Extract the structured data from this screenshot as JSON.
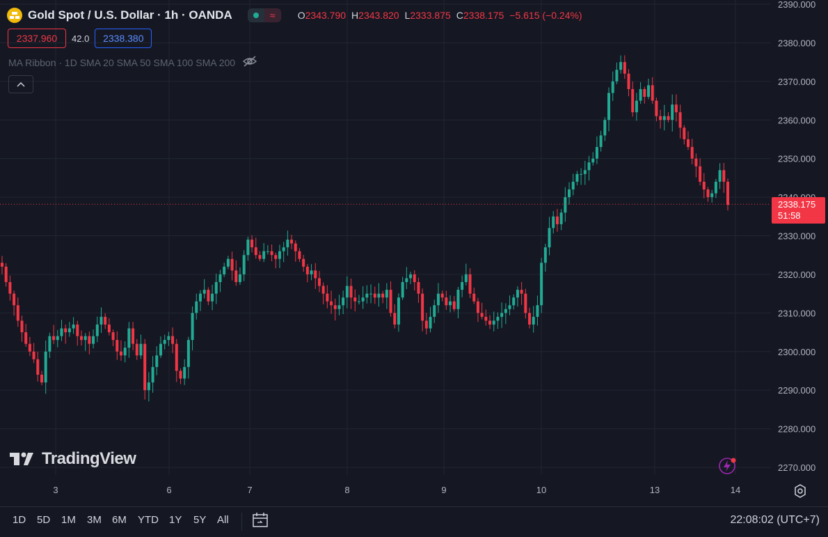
{
  "header": {
    "title": "Gold Spot / U.S. Dollar · 1h · OANDA",
    "ohlc": [
      {
        "key": "O",
        "value": "2343.790"
      },
      {
        "key": "H",
        "value": "2343.820"
      },
      {
        "key": "L",
        "value": "2333.875"
      },
      {
        "key": "C",
        "value": "2338.175"
      }
    ],
    "change": "−5.615 (−0.24%)"
  },
  "trade": {
    "sell": "2337.960",
    "spread": "42.0",
    "buy": "2338.380"
  },
  "indicator": {
    "ma_label": "MA Ribbon · 1D SMA 20 SMA 50 SMA 100 SMA 200"
  },
  "branding": {
    "logo_text": "TradingView"
  },
  "last_price": {
    "price": "2338.175",
    "countdown": "51:58"
  },
  "bottom_bar": {
    "ranges": [
      "1D",
      "5D",
      "1M",
      "3M",
      "6M",
      "YTD",
      "1Y",
      "5Y",
      "All"
    ],
    "clock": "22:08:02 (UTC+7)"
  },
  "colors": {
    "up": "#22ab94",
    "down": "#f23645",
    "background": "#151823",
    "grid": "#222632"
  },
  "chart_data": {
    "type": "candlestick",
    "y_ticks": [
      "2390.000",
      "2380.000",
      "2370.000",
      "2360.000",
      "2350.000",
      "2340.000",
      "2330.000",
      "2320.000",
      "2310.000",
      "2300.000",
      "2290.000",
      "2280.000",
      "2270.000"
    ],
    "x_ticks": [
      "3",
      "6",
      "7",
      "8",
      "9",
      "10",
      "13",
      "14"
    ],
    "close_series": [
      2322,
      2318,
      2315,
      2312,
      2308,
      2305,
      2302,
      2300,
      2298,
      2294,
      2292,
      2300,
      2304,
      2303,
      2304,
      2306,
      2305,
      2306,
      2307,
      2304,
      2303,
      2304,
      2302,
      2304,
      2307,
      2309,
      2307,
      2305,
      2303,
      2300,
      2299,
      2301,
      2306,
      2302,
      2299,
      2302,
      2290,
      2292,
      2296,
      2299,
      2302,
      2303,
      2304,
      2302,
      2295,
      2293,
      2296,
      2303,
      2310,
      2313,
      2315,
      2316,
      2313,
      2315,
      2318,
      2320,
      2322,
      2324,
      2321,
      2318,
      2320,
      2325,
      2329,
      2327,
      2325,
      2324,
      2326,
      2326,
      2325,
      2324,
      2326,
      2327,
      2329,
      2328,
      2326,
      2324,
      2322,
      2320,
      2321,
      2319,
      2317,
      2315,
      2313,
      2312,
      2311,
      2312,
      2314,
      2317,
      2314,
      2313,
      2313,
      2314,
      2315,
      2315,
      2314,
      2315,
      2314,
      2316,
      2310,
      2307,
      2314,
      2318,
      2319,
      2320,
      2318,
      2315,
      2308,
      2306,
      2309,
      2312,
      2315,
      2314,
      2312,
      2313,
      2311,
      2316,
      2318,
      2320,
      2315,
      2313,
      2310,
      2309,
      2308,
      2307,
      2308,
      2309,
      2310,
      2311,
      2312,
      2314,
      2316,
      2315,
      2310,
      2307,
      2309,
      2312,
      2323,
      2327,
      2332,
      2335,
      2333,
      2336,
      2340,
      2342,
      2344,
      2346,
      2346,
      2347,
      2349,
      2350,
      2353,
      2356,
      2360,
      2367,
      2370,
      2373,
      2375,
      2372,
      2368,
      2362,
      2365,
      2368,
      2366,
      2369,
      2365,
      2361,
      2360,
      2361,
      2360,
      2364,
      2362,
      2358,
      2355,
      2353,
      2350,
      2348,
      2344,
      2342,
      2340,
      2341,
      2344,
      2347,
      2344,
      2338
    ]
  }
}
